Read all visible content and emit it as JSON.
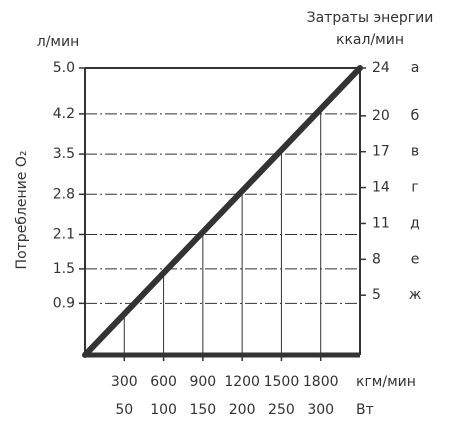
{
  "chart_data": {
    "type": "line",
    "y_unit": "л/мин",
    "y_label": "Потребление O₂",
    "y2_label": [
      "Затраты энергии",
      "ккал/мин"
    ],
    "x_unit": "кгм/мин",
    "x2_unit": "Вт",
    "x": [
      0,
      2100
    ],
    "series": [
      {
        "values": [
          0,
          5.0
        ],
        "color": "#333333"
      }
    ],
    "xlim": [
      0,
      2100
    ],
    "xticks": [
      300,
      600,
      900,
      1200,
      1500,
      1800
    ],
    "x2lim": [
      0,
      350
    ],
    "x2ticks": [
      50,
      100,
      150,
      200,
      250,
      300
    ],
    "ylim": [
      0,
      5.0
    ],
    "yticks": [
      0.9,
      1.5,
      2.1,
      2.8,
      3.5,
      4.2,
      {
        "value": 5.0,
        "label": "5.0"
      }
    ],
    "y2lim": [
      0,
      24
    ],
    "y2ticks": [
      5,
      8,
      11,
      14,
      17,
      20,
      24
    ],
    "levels": [
      "ж",
      "е",
      "д",
      "г",
      "в",
      "б",
      "а"
    ],
    "grid": true
  }
}
